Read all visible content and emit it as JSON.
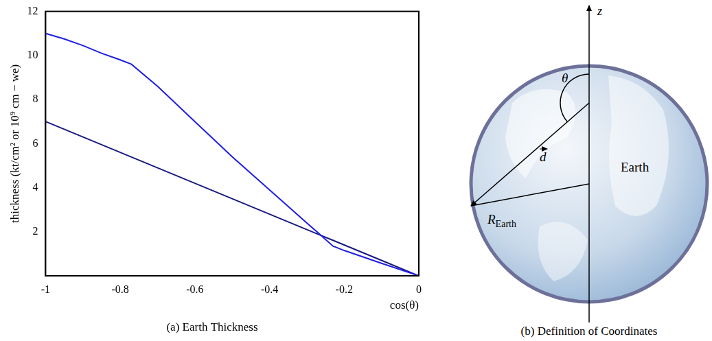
{
  "chart_data": {
    "type": "line",
    "title": "(a) Earth Thickness",
    "x_label": "cos(θ)",
    "y_label": "thickness (kt/cm² or 10⁹ cm − we)",
    "x": [
      -1,
      -0.95,
      -0.9,
      -0.85,
      -0.8,
      -0.77,
      -0.7,
      -0.6,
      -0.5,
      -0.4,
      -0.3,
      -0.27,
      -0.23,
      -0.2,
      -0.1,
      0
    ],
    "series": [
      {
        "color": "#1e1ee6",
        "values": [
          11.0,
          10.75,
          10.45,
          10.1,
          9.8,
          9.6,
          8.6,
          7.0,
          5.4,
          3.9,
          2.4,
          1.95,
          1.35,
          1.15,
          0.57,
          0
        ]
      },
      {
        "color": "#1a1a80",
        "values": [
          7.0,
          6.65,
          6.3,
          5.95,
          5.6,
          5.39,
          4.9,
          4.2,
          3.5,
          2.8,
          2.1,
          1.89,
          1.61,
          1.4,
          0.7,
          0
        ]
      }
    ],
    "xlim": [
      -1,
      0
    ],
    "xticks": [
      -1,
      -0.8,
      -0.6,
      -0.4,
      -0.2,
      0
    ],
    "ylim": [
      0,
      12
    ],
    "yticks": [
      2,
      4,
      6,
      8,
      10,
      12
    ],
    "grid": false
  },
  "diagram": {
    "caption": "(b) Definition of Coordinates",
    "axis_label": "z",
    "angle_label": "θ",
    "vector_label": "d",
    "radius_label": {
      "symbol": "R",
      "subscript": "Earth"
    },
    "body_label": "Earth"
  }
}
